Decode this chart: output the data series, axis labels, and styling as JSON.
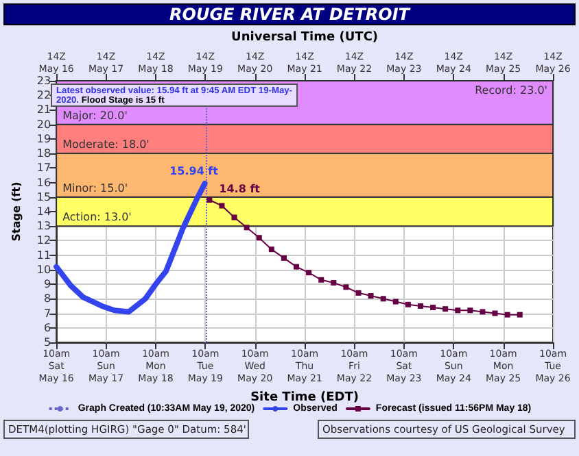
{
  "chart_data": {
    "type": "line",
    "title": "ROUGE RIVER AT DETROIT",
    "xlabel": "Site Time (EDT)",
    "x2label": "Universal Time (UTC)",
    "ylabel": "Stage (ft)",
    "xlim": [
      "2020-05-16T10:00",
      "2020-05-26T10:00"
    ],
    "xticks": [
      {
        "value": "2020-05-16T10:00",
        "label": "10am\nSat\nMay 16"
      },
      {
        "value": "2020-05-17T10:00",
        "label": "10am\nSun\nMay 17"
      },
      {
        "value": "2020-05-18T10:00",
        "label": "10am\nMon\nMay 18"
      },
      {
        "value": "2020-05-19T10:00",
        "label": "10am\nTue\nMay 19"
      },
      {
        "value": "2020-05-20T10:00",
        "label": "10am\nWed\nMay 20"
      },
      {
        "value": "2020-05-21T10:00",
        "label": "10am\nThu\nMay 21"
      },
      {
        "value": "2020-05-22T10:00",
        "label": "10am\nFri\nMay 22"
      },
      {
        "value": "2020-05-23T10:00",
        "label": "10am\nSat\nMay 23"
      },
      {
        "value": "2020-05-24T10:00",
        "label": "10am\nSun\nMay 24"
      },
      {
        "value": "2020-05-25T10:00",
        "label": "10am\nMon\nMay 25"
      },
      {
        "value": "2020-05-26T10:00",
        "label": "10am\nTue\nMay 26"
      }
    ],
    "x2lim": [
      "2020-05-16T14:00",
      "2020-05-26T14:00"
    ],
    "x2ticks": [
      {
        "value": "2020-05-16T14:00",
        "label": "14Z\nMay 16"
      },
      {
        "value": "2020-05-17T14:00",
        "label": "14Z\nMay 17"
      },
      {
        "value": "2020-05-18T14:00",
        "label": "14Z\nMay 18"
      },
      {
        "value": "2020-05-19T14:00",
        "label": "14Z\nMay 19"
      },
      {
        "value": "2020-05-20T14:00",
        "label": "14Z\nMay 20"
      },
      {
        "value": "2020-05-21T14:00",
        "label": "14Z\nMay 21"
      },
      {
        "value": "2020-05-22T14:00",
        "label": "14Z\nMay 22"
      },
      {
        "value": "2020-05-23T14:00",
        "label": "14Z\nMay 23"
      },
      {
        "value": "2020-05-24T14:00",
        "label": "14Z\nMay 24"
      },
      {
        "value": "2020-05-25T14:00",
        "label": "14Z\nMay 25"
      },
      {
        "value": "2020-05-26T14:00",
        "label": "14Z\nMay 26"
      }
    ],
    "ylim": [
      5,
      23
    ],
    "yticks": [
      5,
      6,
      7,
      8,
      9,
      10,
      11,
      12,
      13,
      14,
      15,
      16,
      17,
      18,
      19,
      20,
      21,
      22,
      23
    ],
    "grid": true,
    "legend": "bottom",
    "series": [
      {
        "name": "Observed",
        "color": "#3344ee",
        "marker": "none",
        "line_style": "solid",
        "x": [
          "2020-05-16T10:00",
          "2020-05-16T17:00",
          "2020-05-16T23:00",
          "2020-05-17T08:00",
          "2020-05-17T14:00",
          "2020-05-17T21:00",
          "2020-05-18T05:00",
          "2020-05-18T10:00",
          "2020-05-18T15:00",
          "2020-05-18T20:00",
          "2020-05-18T23:00",
          "2020-05-19T03:00",
          "2020-05-19T06:00",
          "2020-05-19T09:45"
        ],
        "values": [
          10.2,
          8.9,
          8.1,
          7.5,
          7.2,
          7.1,
          8.0,
          9.0,
          9.9,
          11.7,
          12.8,
          14.0,
          14.9,
          15.94
        ],
        "value_labels": [
          null,
          null,
          null,
          null,
          null,
          null,
          null,
          null,
          null,
          null,
          null,
          null,
          null,
          "15.94 ft"
        ]
      },
      {
        "name": "Forecast (issued 11:56PM May 18)",
        "color": "#660044",
        "marker": "square",
        "line_style": "solid",
        "x": [
          "2020-05-19T12:00",
          "2020-05-19T18:00",
          "2020-05-20T00:00",
          "2020-05-20T06:00",
          "2020-05-20T12:00",
          "2020-05-20T18:00",
          "2020-05-21T00:00",
          "2020-05-21T06:00",
          "2020-05-21T12:00",
          "2020-05-21T18:00",
          "2020-05-22T00:00",
          "2020-05-22T06:00",
          "2020-05-22T12:00",
          "2020-05-22T18:00",
          "2020-05-23T00:00",
          "2020-05-23T06:00",
          "2020-05-23T12:00",
          "2020-05-23T18:00",
          "2020-05-24T00:00",
          "2020-05-24T06:00",
          "2020-05-24T12:00",
          "2020-05-24T18:00",
          "2020-05-25T00:00",
          "2020-05-25T06:00",
          "2020-05-25T12:00",
          "2020-05-25T18:00"
        ],
        "values": [
          14.8,
          14.4,
          13.6,
          12.9,
          12.2,
          11.4,
          10.8,
          10.2,
          9.8,
          9.3,
          9.1,
          8.8,
          8.4,
          8.2,
          8.0,
          7.8,
          7.6,
          7.5,
          7.4,
          7.3,
          7.2,
          7.2,
          7.1,
          7.0,
          6.9,
          6.9
        ],
        "value_labels": [
          "14.8 ft",
          null,
          null,
          null,
          null,
          null,
          null,
          null,
          null,
          null,
          null,
          null,
          null,
          null,
          null,
          null,
          null,
          null,
          null,
          null,
          null,
          null,
          null,
          null,
          null,
          null
        ]
      }
    ],
    "ref_lines": [
      {
        "axis": "x",
        "value": "2020-05-19T10:33",
        "label": "Graph Created (10:33AM May 19, 2020)",
        "color": "#6666cc",
        "line_style": "dotted"
      }
    ],
    "bands": [
      {
        "axis": "y",
        "from": 13,
        "to": 15,
        "label": "Action: 13.0'",
        "color": "#ffff66"
      },
      {
        "axis": "y",
        "from": 15,
        "to": 18,
        "label": "Minor: 15.0'",
        "color": "#ffb870"
      },
      {
        "axis": "y",
        "from": 18,
        "to": 20,
        "label": "Moderate: 18.0'",
        "color": "#ff7f7f"
      },
      {
        "axis": "y",
        "from": 20,
        "to": 23,
        "label": "Major: 20.0'",
        "color": "#e08cff"
      }
    ],
    "annotations": [
      "Latest observed value: 15.94 ft at 9:45 AM EDT 19-May-2020.",
      "Flood Stage is 15 ft",
      "DETM4(plotting HGIRG) \"Gage 0\" Datum: 584'",
      "Observations courtesy of US Geological Survey",
      {
        "text": "Record: 23.0'",
        "y": 23
      }
    ]
  }
}
